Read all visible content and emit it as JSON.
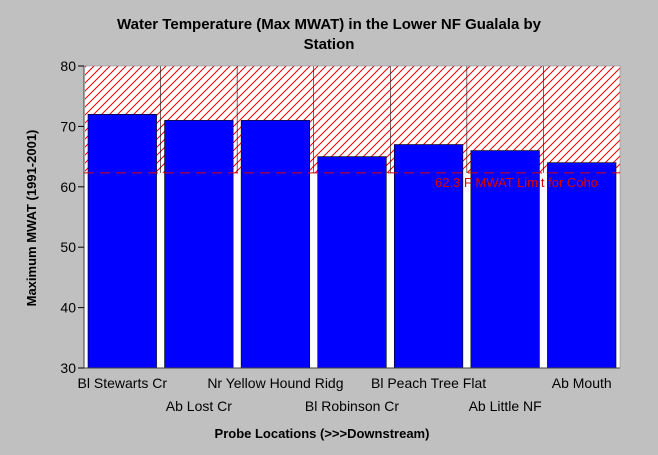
{
  "chart_data": {
    "type": "bar",
    "title": "Water Temperature (Max MWAT) in the Lower NF Gualala by",
    "subtitle": "Station",
    "xlabel": "Probe Locations (>>>Downstream)",
    "ylabel": "Maximum MWAT (1991-2001)",
    "ylim": [
      30,
      80
    ],
    "yticks": [
      30,
      40,
      50,
      60,
      70,
      80
    ],
    "categories": [
      "Bl Stewarts Cr",
      "Ab Lost Cr",
      "Nr Yellow Hound Ridg",
      "Bl Robinson Cr",
      "Bl Peach Tree Flat",
      "Ab Little NF",
      "Ab Mouth"
    ],
    "values": [
      72,
      71,
      71,
      65,
      67,
      66,
      64
    ],
    "threshold": {
      "value": 62.3,
      "label": "62.3 F MWAT Limit for Coho",
      "color": "#dd0000"
    },
    "bar_color": "#0000ff",
    "hatch_color": "#ff0000",
    "grid": false,
    "legend": "none"
  }
}
